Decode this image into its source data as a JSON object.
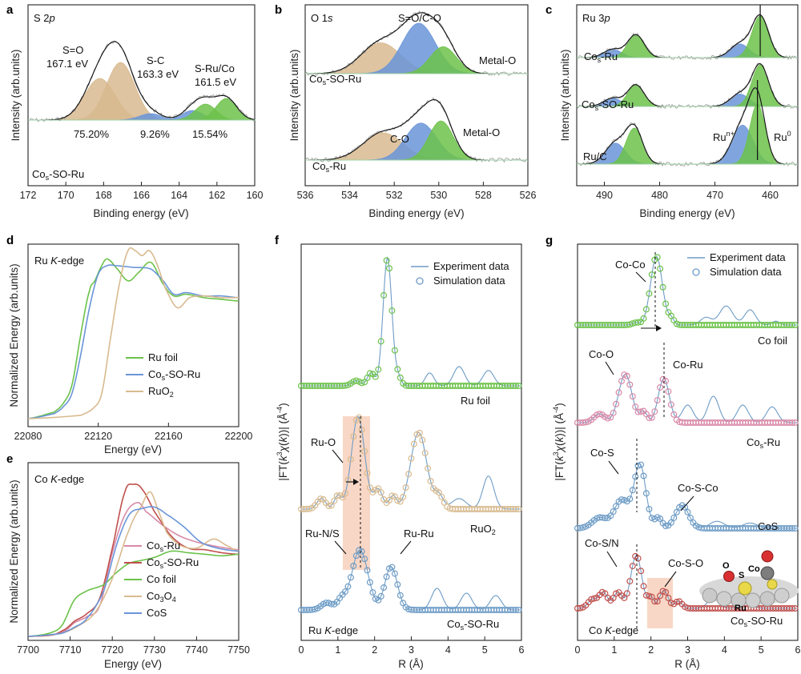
{
  "colors": {
    "green": "#6cc24a",
    "blue": "#6a95d8",
    "tan": "#d8ba8f",
    "red": "#c0504d",
    "pink": "#d98aa8",
    "cosblue": "#6e9cc6",
    "shade": "#f6c6ae",
    "gray": "#9a9a9a"
  },
  "chart_data": [
    {
      "panel": "a",
      "type": "area",
      "title": "S 2p",
      "xlabel": "Binding energy (eV)",
      "ylabel": "Intensity (arb.units)",
      "xlim": [
        172,
        160
      ],
      "xticks": [
        172,
        170,
        168,
        166,
        164,
        162,
        160
      ],
      "sample": "Cos-SO-Ru",
      "peaks": [
        {
          "name": "S=O",
          "center": 168.2,
          "height": 0.52,
          "width": 0.8,
          "color": "tan"
        },
        {
          "name": "S=O",
          "center": 167.1,
          "height": 0.72,
          "width": 0.75,
          "color": "tan"
        },
        {
          "name": "S-C",
          "center": 165.5,
          "height": 0.08,
          "width": 0.6,
          "color": "blue"
        },
        {
          "name": "S-C",
          "center": 163.3,
          "height": 0.12,
          "width": 0.55,
          "color": "blue"
        },
        {
          "name": "S-Ru/Co",
          "center": 162.6,
          "height": 0.2,
          "width": 0.55,
          "color": "green"
        },
        {
          "name": "S-Ru/Co",
          "center": 161.5,
          "height": 0.27,
          "width": 0.55,
          "color": "green"
        }
      ],
      "labels": {
        "so_name": "S=O",
        "so_ev": "167.1 eV",
        "sc_name": "S-C",
        "sc_ev": "163.3 eV",
        "sru_name": "S-Ru/Co",
        "sru_ev": "161.5 eV",
        "pct_so": "75.20%",
        "pct_sc": "9.26%",
        "pct_sru": "15.54%"
      }
    },
    {
      "panel": "b",
      "type": "area",
      "title": "O 1s",
      "xlabel": "Binding energy (eV)",
      "ylabel": "Intensity (arb.units)",
      "xlim": [
        536,
        526
      ],
      "xticks": [
        536,
        534,
        532,
        530,
        528,
        526
      ],
      "series": [
        {
          "name": "Cos-SO-Ru",
          "peaks": [
            {
              "center": 532.6,
              "height": 0.55,
              "width": 0.9,
              "color": "tan"
            },
            {
              "center": 530.9,
              "height": 0.9,
              "width": 0.75,
              "color": "blue"
            },
            {
              "center": 529.8,
              "height": 0.48,
              "width": 0.6,
              "color": "green"
            }
          ]
        },
        {
          "name": "Cos-Ru",
          "peaks": [
            {
              "center": 532.5,
              "height": 0.5,
              "width": 0.9,
              "color": "tan"
            },
            {
              "center": 530.8,
              "height": 0.68,
              "width": 0.7,
              "color": "blue"
            },
            {
              "center": 529.9,
              "height": 0.72,
              "width": 0.55,
              "color": "green"
            }
          ]
        }
      ],
      "labels": {
        "so_co": "S=O/C-O",
        "metal_o_top": "Metal-O",
        "metal_o_bottom": "Metal-O",
        "co": "C-O"
      }
    },
    {
      "panel": "c",
      "type": "area",
      "title": "Ru 3p",
      "xlabel": "Binding energy (eV)",
      "ylabel": "Intensity (arb.units)",
      "xlim": [
        495,
        455
      ],
      "xticks": [
        490,
        480,
        470,
        460
      ],
      "series": [
        {
          "name": "Cos-Ru",
          "peaks": [
            {
              "center": 488.5,
              "height": 0.2,
              "width": 1.6,
              "color": "blue"
            },
            {
              "center": 484.3,
              "height": 0.55,
              "width": 1.5,
              "color": "green"
            },
            {
              "center": 465.5,
              "height": 0.33,
              "width": 1.7,
              "color": "blue"
            },
            {
              "center": 461.8,
              "height": 1.0,
              "width": 1.5,
              "color": "green"
            }
          ]
        },
        {
          "name": "Cos-SO-Ru",
          "peaks": [
            {
              "center": 488.5,
              "height": 0.2,
              "width": 1.6,
              "color": "blue"
            },
            {
              "center": 484.3,
              "height": 0.52,
              "width": 1.5,
              "color": "green"
            },
            {
              "center": 465.5,
              "height": 0.3,
              "width": 1.7,
              "color": "blue"
            },
            {
              "center": 461.8,
              "height": 1.0,
              "width": 1.5,
              "color": "green"
            }
          ]
        },
        {
          "name": "Ru/C",
          "peaks": [
            {
              "center": 488.0,
              "height": 0.35,
              "width": 1.8,
              "color": "blue"
            },
            {
              "center": 484.6,
              "height": 0.6,
              "width": 1.5,
              "color": "green"
            },
            {
              "center": 465.0,
              "height": 0.65,
              "width": 1.9,
              "color": "blue"
            },
            {
              "center": 462.3,
              "height": 1.0,
              "width": 1.4,
              "color": "green"
            }
          ]
        }
      ],
      "labels": {
        "run": "Ru",
        "run_sup": "n+",
        "ru0": "Ru",
        "ru0_sup": "0"
      }
    },
    {
      "panel": "d",
      "type": "line",
      "title": "Ru K-edge",
      "xlabel": "Energy (eV)",
      "ylabel": "Normalized Energy (arb.units)",
      "xlim": [
        22080,
        22200
      ],
      "xticks": [
        22080,
        22120,
        22160,
        22200
      ],
      "series": [
        {
          "name": "Ru foil",
          "color": "green",
          "x": [
            22080,
            22095,
            22100,
            22105,
            22110,
            22115,
            22118,
            22122,
            22125,
            22130,
            22137,
            22143,
            22150,
            22157,
            22163,
            22170,
            22180,
            22190,
            22200
          ],
          "y": [
            0.0,
            0.04,
            0.09,
            0.2,
            0.5,
            0.76,
            0.82,
            0.91,
            0.95,
            0.9,
            0.82,
            0.87,
            0.93,
            0.8,
            0.73,
            0.74,
            0.72,
            0.71,
            0.7
          ]
        },
        {
          "name": "Cos-SO-Ru",
          "color": "blue",
          "x": [
            22080,
            22095,
            22100,
            22105,
            22110,
            22115,
            22120,
            22125,
            22130,
            22140,
            22150,
            22157,
            22163,
            22170,
            22180,
            22190,
            22200
          ],
          "y": [
            0.0,
            0.03,
            0.07,
            0.15,
            0.38,
            0.66,
            0.86,
            0.91,
            0.91,
            0.9,
            0.89,
            0.82,
            0.74,
            0.75,
            0.73,
            0.73,
            0.72
          ]
        },
        {
          "name": "RuO2",
          "color": "tan",
          "x": [
            22080,
            22110,
            22117,
            22122,
            22127,
            22132,
            22137,
            22141,
            22145,
            22149,
            22153,
            22158,
            22165,
            22172,
            22180,
            22190,
            22200
          ],
          "y": [
            0.0,
            0.02,
            0.06,
            0.15,
            0.48,
            0.8,
            1.0,
            1.0,
            0.97,
            1.0,
            0.93,
            0.78,
            0.66,
            0.72,
            0.73,
            0.72,
            0.72
          ]
        }
      ],
      "legend": [
        "Ru foil",
        "Cos-SO-Ru",
        "RuO2"
      ]
    },
    {
      "panel": "e",
      "type": "line",
      "title": "Co K-edge",
      "xlabel": "Energy (eV)",
      "ylabel": "Normalized Energy (arb.units)",
      "xlim": [
        7700,
        7750
      ],
      "xticks": [
        7700,
        7710,
        7720,
        7730,
        7740,
        7750
      ],
      "series": [
        {
          "name": "Cos-Ru",
          "color": "pink",
          "x": [
            7700,
            7706,
            7709,
            7711,
            7714,
            7717,
            7720,
            7723,
            7726,
            7728,
            7732,
            7736,
            7740,
            7745,
            7750
          ],
          "y": [
            0.0,
            0.01,
            0.04,
            0.09,
            0.13,
            0.2,
            0.55,
            0.8,
            0.88,
            0.82,
            0.73,
            0.66,
            0.62,
            0.59,
            0.57
          ]
        },
        {
          "name": "Cos-SO-Ru",
          "color": "red",
          "x": [
            7700,
            7706,
            7709,
            7711,
            7714,
            7717,
            7720,
            7723,
            7725,
            7727,
            7730,
            7734,
            7738,
            7742,
            7746,
            7750
          ],
          "y": [
            0.0,
            0.01,
            0.05,
            0.1,
            0.15,
            0.25,
            0.58,
            0.95,
            1.0,
            0.97,
            0.82,
            0.66,
            0.58,
            0.57,
            0.55,
            0.54
          ]
        },
        {
          "name": "Co foil",
          "color": "green",
          "x": [
            7700,
            7705,
            7708,
            7711,
            7714,
            7718,
            7721,
            7724,
            7727,
            7730,
            7734,
            7738,
            7742,
            7746,
            7750
          ],
          "y": [
            0.0,
            0.02,
            0.07,
            0.24,
            0.3,
            0.34,
            0.42,
            0.48,
            0.5,
            0.52,
            0.56,
            0.55,
            0.54,
            0.53,
            0.54
          ]
        },
        {
          "name": "Co3O4",
          "color": "tan",
          "x": [
            7700,
            7708,
            7712,
            7716,
            7720,
            7724,
            7727,
            7729,
            7731,
            7733,
            7736,
            7740,
            7744,
            7747,
            7750
          ],
          "y": [
            0.0,
            0.02,
            0.07,
            0.16,
            0.38,
            0.7,
            0.86,
            0.95,
            0.82,
            0.68,
            0.6,
            0.58,
            0.64,
            0.6,
            0.56
          ]
        },
        {
          "name": "CoS",
          "color": "blue",
          "x": [
            7700,
            7708,
            7711,
            7714,
            7718,
            7721,
            7724,
            7727,
            7730,
            7733,
            7737,
            7741,
            7745,
            7750
          ],
          "y": [
            0.0,
            0.02,
            0.06,
            0.12,
            0.3,
            0.6,
            0.8,
            0.84,
            0.85,
            0.8,
            0.72,
            0.62,
            0.58,
            0.56
          ]
        }
      ],
      "legend": [
        "Cos-Ru",
        "Cos-SO-Ru",
        "Co foil",
        "Co3O4",
        "CoS"
      ]
    },
    {
      "panel": "f",
      "type": "line",
      "title": "Ru K-edge",
      "xlabel": "R (Å)",
      "ylabel": "|FT(k3χ(k))| (Å-4)",
      "xlim": [
        0,
        6
      ],
      "xticks": [
        0,
        1,
        2,
        3,
        4,
        5,
        6
      ],
      "legend": [
        "Experiment data",
        "Simulation data"
      ],
      "series": [
        {
          "name": "Ru foil",
          "color": "green",
          "offset": 0.0,
          "peaks": [
            [
              1.5,
              0.04,
              0.12
            ],
            [
              1.9,
              0.1,
              0.1
            ],
            [
              2.35,
              1.0,
              0.12
            ],
            [
              2.65,
              0.06,
              0.08
            ]
          ],
          "experiment_extra": [
            [
              3.5,
              0.1,
              0.12
            ],
            [
              4.3,
              0.15,
              0.15
            ],
            [
              5.1,
              0.12,
              0.15
            ]
          ]
        },
        {
          "name": "RuO2",
          "color": "tan",
          "offset": 0.0,
          "peaks": [
            [
              0.55,
              0.08,
              0.12
            ],
            [
              1.0,
              0.1,
              0.1
            ],
            [
              1.55,
              0.7,
              0.18
            ],
            [
              2.1,
              0.15,
              0.12
            ],
            [
              2.5,
              0.1,
              0.1
            ],
            [
              3.2,
              0.58,
              0.22
            ],
            [
              3.75,
              0.1,
              0.12
            ]
          ],
          "experiment_extra": [
            [
              4.3,
              0.08,
              0.2
            ],
            [
              5.1,
              0.25,
              0.15
            ]
          ]
        },
        {
          "name": "Cos-SO-Ru",
          "color": "cosblue",
          "offset": 0.0,
          "peaks": [
            [
              0.7,
              0.06,
              0.15
            ],
            [
              1.1,
              0.08,
              0.12
            ],
            [
              1.6,
              0.5,
              0.22
            ],
            [
              2.45,
              0.36,
              0.17
            ]
          ],
          "experiment_extra": [
            [
              3.7,
              0.18,
              0.15
            ],
            [
              4.5,
              0.14,
              0.15
            ],
            [
              5.3,
              0.12,
              0.15
            ]
          ]
        }
      ],
      "labels": {
        "ru_o": "Ru-O",
        "ru_ns": "Ru-N/S",
        "ru_ru": "Ru-Ru",
        "ru_foil": "Ru foil",
        "ruo2": "RuO2",
        "cos_so_ru": "Cos-SO-Ru",
        "edge": "Ru K-edge"
      }
    },
    {
      "panel": "g",
      "type": "line",
      "title": "Co K-edge",
      "xlabel": "R (Å)",
      "ylabel": "|FT(k3χ(k))| (Å-4)",
      "xlim": [
        0,
        6
      ],
      "xticks": [
        0,
        1,
        2,
        3,
        4,
        5,
        6
      ],
      "legend": [
        "Experiment data",
        "Simulation data"
      ],
      "series": [
        {
          "name": "Co foil",
          "color": "green",
          "peaks": [
            [
              1.6,
              0.03,
              0.1
            ],
            [
              2.15,
              0.9,
              0.16
            ],
            [
              2.55,
              0.08,
              0.08
            ]
          ],
          "experiment_extra": [
            [
              3.5,
              0.1,
              0.15
            ],
            [
              4.05,
              0.25,
              0.18
            ],
            [
              4.7,
              0.2,
              0.15
            ],
            [
              5.4,
              0.05,
              0.1
            ]
          ]
        },
        {
          "name": "Cos-Ru",
          "color": "pink",
          "peaks": [
            [
              0.6,
              0.1,
              0.15
            ],
            [
              1.3,
              0.55,
              0.18
            ],
            [
              1.8,
              0.12,
              0.1
            ],
            [
              2.35,
              0.5,
              0.15
            ]
          ],
          "experiment_extra": [
            [
              3.0,
              0.2,
              0.15
            ],
            [
              3.7,
              0.3,
              0.15
            ],
            [
              4.5,
              0.2,
              0.15
            ],
            [
              5.3,
              0.18,
              0.15
            ]
          ]
        },
        {
          "name": "CoS",
          "color": "cosblue",
          "peaks": [
            [
              0.6,
              0.12,
              0.2
            ],
            [
              1.2,
              0.32,
              0.2
            ],
            [
              1.7,
              0.72,
              0.16
            ],
            [
              2.2,
              0.12,
              0.1
            ],
            [
              2.85,
              0.26,
              0.18
            ]
          ],
          "experiment_extra": [
            [
              3.8,
              0.08,
              0.2
            ],
            [
              4.7,
              0.06,
              0.2
            ]
          ]
        },
        {
          "name": "Cos-SO-Ru",
          "color": "red",
          "peaks": [
            [
              0.4,
              0.1,
              0.12
            ],
            [
              0.7,
              0.18,
              0.12
            ],
            [
              1.1,
              0.18,
              0.12
            ],
            [
              1.6,
              0.6,
              0.15
            ],
            [
              2.0,
              0.12,
              0.08
            ],
            [
              2.35,
              0.2,
              0.12
            ],
            [
              2.75,
              0.08,
              0.1
            ]
          ],
          "experiment_extra": [
            [
              3.7,
              0.12,
              0.15
            ],
            [
              4.6,
              0.1,
              0.15
            ]
          ]
        }
      ],
      "labels": {
        "co_co": "Co-Co",
        "co_foil": "Co foil",
        "co_o": "Co-O",
        "co_ru": "Co-Ru",
        "cos_ru": "Cos-Ru",
        "co_s": "Co-S",
        "co_s_co": "Co-S-Co",
        "cos": "CoS",
        "co_sn": "Co-S/N",
        "co_s_o": "Co-S-O",
        "cos_so_ru": "Cos-SO-Ru",
        "edge": "Co K-edge",
        "inset_o": "O",
        "inset_s": "S",
        "inset_co": "Co",
        "inset_ru": "Ru"
      }
    }
  ]
}
